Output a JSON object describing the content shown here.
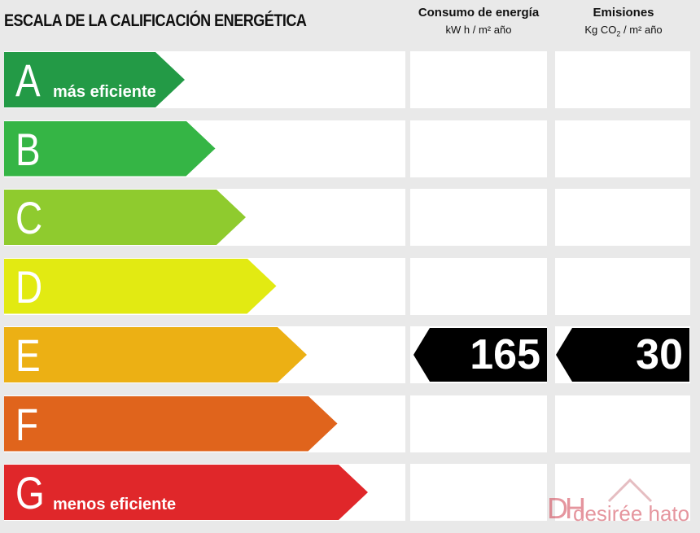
{
  "title": "ESCALA DE LA CALIFICACIÓN ENERGÉTICA",
  "columns": {
    "energy": {
      "title": "Consumo de energía",
      "unit": "kW h / m² año"
    },
    "emissions": {
      "title": "Emisiones",
      "unit_prefix": "Kg CO",
      "unit_sub": "2",
      "unit_suffix": " / m² año"
    }
  },
  "rows": [
    {
      "letter": "A",
      "sublabel": "más eficiente",
      "color": "#239a46"
    },
    {
      "letter": "B",
      "sublabel": "",
      "color": "#35b545"
    },
    {
      "letter": "C",
      "sublabel": "",
      "color": "#8fcb2e"
    },
    {
      "letter": "D",
      "sublabel": "",
      "color": "#e2ea12"
    },
    {
      "letter": "E",
      "sublabel": "",
      "color": "#ecb014"
    },
    {
      "letter": "F",
      "sublabel": "",
      "color": "#e0641c"
    },
    {
      "letter": "G",
      "sublabel": "menos eficiente",
      "color": "#e0272a"
    }
  ],
  "rating": {
    "row_letter": "E",
    "energy_value": "165",
    "emissions_value": "30"
  },
  "watermark": {
    "brand": "desirée hato",
    "logo": "DH"
  }
}
